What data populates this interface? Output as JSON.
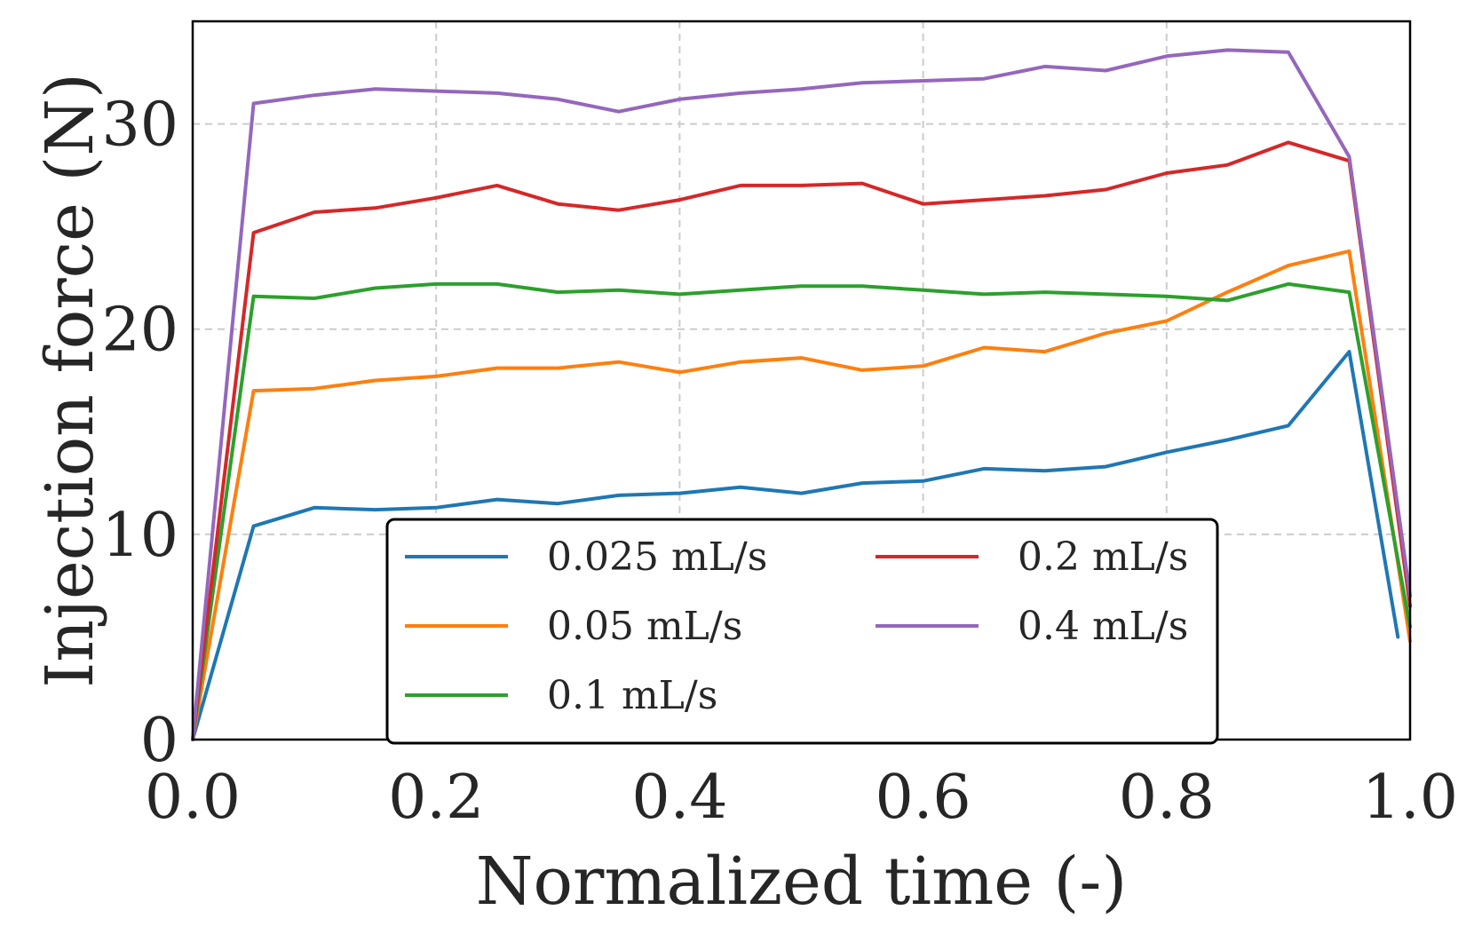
{
  "chart_data": {
    "type": "line",
    "title": "",
    "xlabel": "Normalized time (-)",
    "ylabel": "Injection force (N)",
    "xlim": [
      0.0,
      1.0
    ],
    "ylim": [
      0,
      35
    ],
    "xticks": [
      0.0,
      0.2,
      0.4,
      0.6,
      0.8,
      1.0
    ],
    "xtick_labels": [
      "0.0",
      "0.2",
      "0.4",
      "0.6",
      "0.8",
      "1.0"
    ],
    "yticks": [
      0,
      10,
      20,
      30
    ],
    "ytick_labels": [
      "0",
      "10",
      "20",
      "30"
    ],
    "grid": true,
    "legend_position": "lower-center",
    "legend_columns": 2,
    "series": [
      {
        "name": "0.025 mL/s",
        "color": "#1f77b4",
        "x": [
          0.0,
          0.05,
          0.1,
          0.15,
          0.2,
          0.25,
          0.3,
          0.35,
          0.4,
          0.45,
          0.5,
          0.55,
          0.6,
          0.65,
          0.7,
          0.75,
          0.8,
          0.85,
          0.9,
          0.95,
          0.99
        ],
        "y": [
          0.0,
          10.4,
          11.3,
          11.2,
          11.3,
          11.7,
          11.5,
          11.9,
          12.0,
          12.3,
          12.0,
          12.5,
          12.6,
          13.2,
          13.1,
          13.3,
          14.0,
          14.6,
          15.3,
          18.9,
          5.0
        ]
      },
      {
        "name": "0.05 mL/s",
        "color": "#ff7f0e",
        "x": [
          0.0,
          0.05,
          0.1,
          0.15,
          0.2,
          0.25,
          0.3,
          0.35,
          0.4,
          0.45,
          0.5,
          0.55,
          0.6,
          0.65,
          0.7,
          0.75,
          0.8,
          0.85,
          0.9,
          0.95,
          1.0
        ],
        "y": [
          0.0,
          17.0,
          17.1,
          17.5,
          17.7,
          18.1,
          18.1,
          18.4,
          17.9,
          18.4,
          18.6,
          18.0,
          18.2,
          19.1,
          18.9,
          19.8,
          20.4,
          21.8,
          23.1,
          23.8,
          4.8
        ]
      },
      {
        "name": "0.1 mL/s",
        "color": "#2ca02c",
        "x": [
          0.0,
          0.05,
          0.1,
          0.15,
          0.2,
          0.25,
          0.3,
          0.35,
          0.4,
          0.45,
          0.5,
          0.55,
          0.6,
          0.65,
          0.7,
          0.75,
          0.8,
          0.85,
          0.9,
          0.95,
          1.0
        ],
        "y": [
          0.0,
          21.6,
          21.5,
          22.0,
          22.2,
          22.2,
          21.8,
          21.9,
          21.7,
          21.9,
          22.1,
          22.1,
          21.9,
          21.7,
          21.8,
          21.7,
          21.6,
          21.4,
          22.2,
          21.8,
          5.5
        ]
      },
      {
        "name": "0.2 mL/s",
        "color": "#d62728",
        "x": [
          0.0,
          0.05,
          0.1,
          0.15,
          0.2,
          0.25,
          0.3,
          0.35,
          0.4,
          0.45,
          0.5,
          0.55,
          0.6,
          0.65,
          0.7,
          0.75,
          0.8,
          0.85,
          0.9,
          0.95,
          1.0
        ],
        "y": [
          0.0,
          24.7,
          25.7,
          25.9,
          26.4,
          27.0,
          26.1,
          25.8,
          26.3,
          27.0,
          27.0,
          27.1,
          26.1,
          26.3,
          26.5,
          26.8,
          27.6,
          28.0,
          29.1,
          28.2,
          6.5
        ]
      },
      {
        "name": "0.4 mL/s",
        "color": "#9467bd",
        "x": [
          0.0,
          0.05,
          0.1,
          0.15,
          0.2,
          0.25,
          0.3,
          0.35,
          0.4,
          0.45,
          0.5,
          0.55,
          0.6,
          0.65,
          0.7,
          0.75,
          0.8,
          0.85,
          0.9,
          0.95,
          1.0
        ],
        "y": [
          0.0,
          31.0,
          31.4,
          31.7,
          31.6,
          31.5,
          31.2,
          30.6,
          31.2,
          31.5,
          31.7,
          32.0,
          32.1,
          32.2,
          32.8,
          32.6,
          33.3,
          33.6,
          33.5,
          28.4,
          7.0
        ]
      }
    ]
  }
}
